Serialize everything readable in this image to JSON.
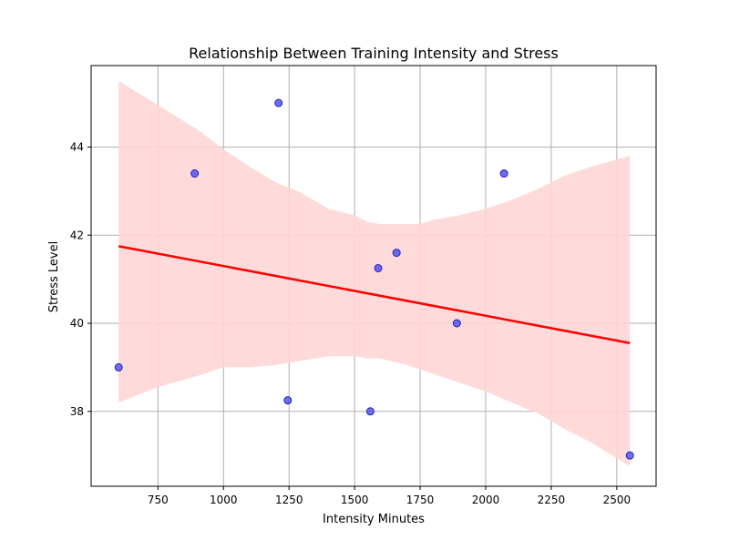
{
  "chart_data": {
    "type": "scatter",
    "title": "Relationship Between Training Intensity and Stress",
    "xlabel": "Intensity Minutes",
    "ylabel": "Stress Level",
    "xlim": [
      495,
      2650
    ],
    "ylim": [
      36.3,
      45.85
    ],
    "xticks": [
      750,
      1000,
      1250,
      1500,
      1750,
      2000,
      2250,
      2500
    ],
    "yticks": [
      38,
      40,
      42,
      44
    ],
    "grid": true,
    "points": [
      {
        "x": 600,
        "y": 39.0
      },
      {
        "x": 890,
        "y": 43.4
      },
      {
        "x": 1210,
        "y": 45.0
      },
      {
        "x": 1245,
        "y": 38.25
      },
      {
        "x": 1560,
        "y": 38.0
      },
      {
        "x": 1590,
        "y": 41.25
      },
      {
        "x": 1660,
        "y": 41.6
      },
      {
        "x": 1890,
        "y": 40.0
      },
      {
        "x": 2070,
        "y": 43.4
      },
      {
        "x": 2550,
        "y": 37.0
      }
    ],
    "regression": {
      "x": [
        600,
        2550
      ],
      "y": [
        41.75,
        39.55
      ]
    },
    "confidence_band": {
      "x": [
        600,
        750,
        900,
        1000,
        1100,
        1200,
        1300,
        1400,
        1500,
        1550,
        1600,
        1700,
        1750,
        1800,
        1900,
        2000,
        2100,
        2200,
        2300,
        2400,
        2550
      ],
      "upper": [
        45.5,
        44.95,
        44.4,
        43.95,
        43.55,
        43.2,
        42.95,
        42.6,
        42.45,
        42.3,
        42.25,
        42.25,
        42.25,
        42.35,
        42.45,
        42.6,
        42.8,
        43.05,
        43.35,
        43.55,
        43.8
      ],
      "lower": [
        38.2,
        38.55,
        38.8,
        39.0,
        39.0,
        39.05,
        39.15,
        39.25,
        39.25,
        39.2,
        39.2,
        39.05,
        38.95,
        38.85,
        38.65,
        38.45,
        38.2,
        37.95,
        37.6,
        37.3,
        36.75
      ]
    },
    "colors": {
      "point_fill": "#5555ee",
      "point_stroke": "#2222bb",
      "regression_line": "#ff0000",
      "band_fill": "#ffd6d6",
      "grid": "#b0b0b0"
    }
  }
}
